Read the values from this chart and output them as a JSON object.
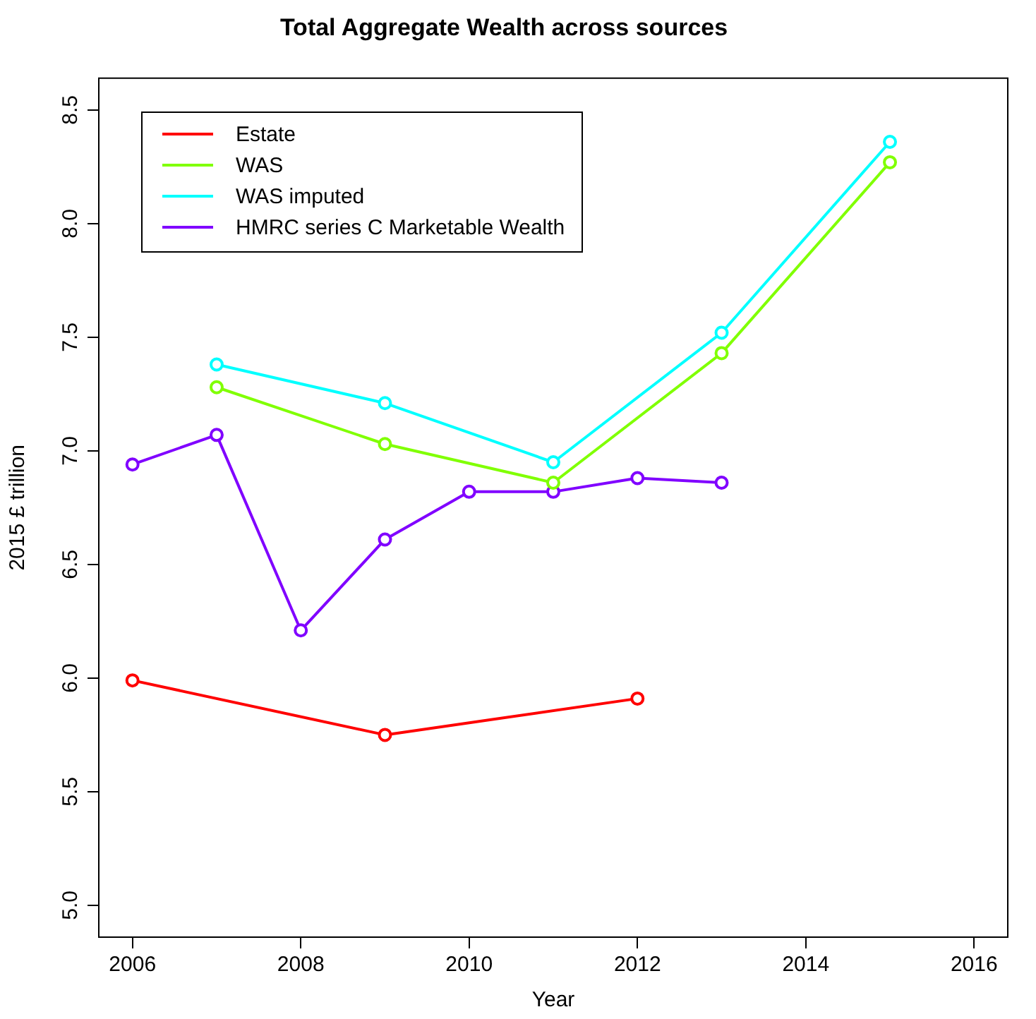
{
  "chart_data": {
    "type": "line",
    "title": "Total Aggregate Wealth across sources",
    "xlabel": "Year",
    "ylabel": "2015 £ trillion",
    "xlim": [
      2005.6,
      2016.4
    ],
    "xticks": [
      2006,
      2008,
      2010,
      2012,
      2014,
      2016
    ],
    "ylim": [
      4.86,
      8.64
    ],
    "yticks": [
      {
        "value": 5,
        "label": "5.0"
      },
      5.5,
      {
        "value": 6,
        "label": "6.0"
      },
      6.5,
      {
        "value": 7,
        "label": "7.0"
      },
      7.5,
      {
        "value": 8,
        "label": "8.0"
      },
      8.5
    ],
    "grid": false,
    "legend": "top left",
    "marker": "circle",
    "line_style": "solid",
    "series": [
      {
        "name": "Estate",
        "color": "#ff0000",
        "x": [
          2006,
          2009,
          2012
        ],
        "values": [
          5.99,
          5.75,
          5.91
        ]
      },
      {
        "name": "WAS",
        "color": "#80ff00",
        "x": [
          2007,
          2009,
          2011,
          2013,
          2015
        ],
        "values": [
          7.28,
          7.03,
          6.86,
          7.43,
          8.27
        ]
      },
      {
        "name": "WAS imputed",
        "color": "#00ffff",
        "x": [
          2007,
          2009,
          2011,
          2013,
          2015
        ],
        "values": [
          7.38,
          7.21,
          6.95,
          7.52,
          8.36
        ]
      },
      {
        "name": "HMRC series C Marketable Wealth",
        "color": "#8000ff",
        "x": [
          2006,
          2007,
          2008,
          2009,
          2010,
          2011,
          2012,
          2013
        ],
        "values": [
          6.94,
          7.07,
          6.21,
          6.61,
          6.82,
          6.82,
          6.88,
          6.86
        ]
      }
    ]
  }
}
